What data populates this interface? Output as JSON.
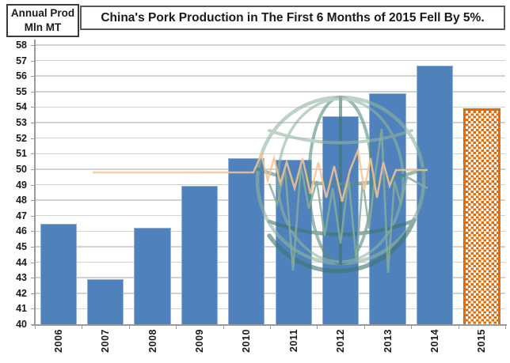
{
  "header": {
    "y_axis_unit_box": {
      "line1": "Annual Prod",
      "line2": "Mln MT"
    },
    "title": "China's Pork Production in The First 6 Months of 2015 Fell By 5%."
  },
  "chart_data": {
    "type": "bar",
    "title": "China's Pork Production in The First 6 Months of 2015 Fell By 5%.",
    "ylabel": "Annual Prod Mln MT",
    "xlabel": "",
    "categories": [
      "2006",
      "2007",
      "2008",
      "2009",
      "2010",
      "2011",
      "2012",
      "2013",
      "2014",
      "2015"
    ],
    "values": [
      46.5,
      42.9,
      46.2,
      48.9,
      50.7,
      50.6,
      53.4,
      54.9,
      56.7,
      53.9
    ],
    "ylim": [
      40,
      58
    ],
    "ytick_step": 1,
    "grid": true,
    "legend": "none",
    "highlight_category": "2015",
    "highlight_note": "2015 bar shown as orange checkered (hatched) forecast bar",
    "colors": {
      "bar": "#4F81BD",
      "bar_border": "#93B2D7",
      "highlight": "#E36C0A",
      "gridline": "#D2D2D2",
      "axis": "#9A9A9A",
      "watermark_green_light": "#A5C3AC",
      "watermark_green_dark": "#47786F",
      "watermark_ekg_orange": "#F6C492"
    }
  }
}
